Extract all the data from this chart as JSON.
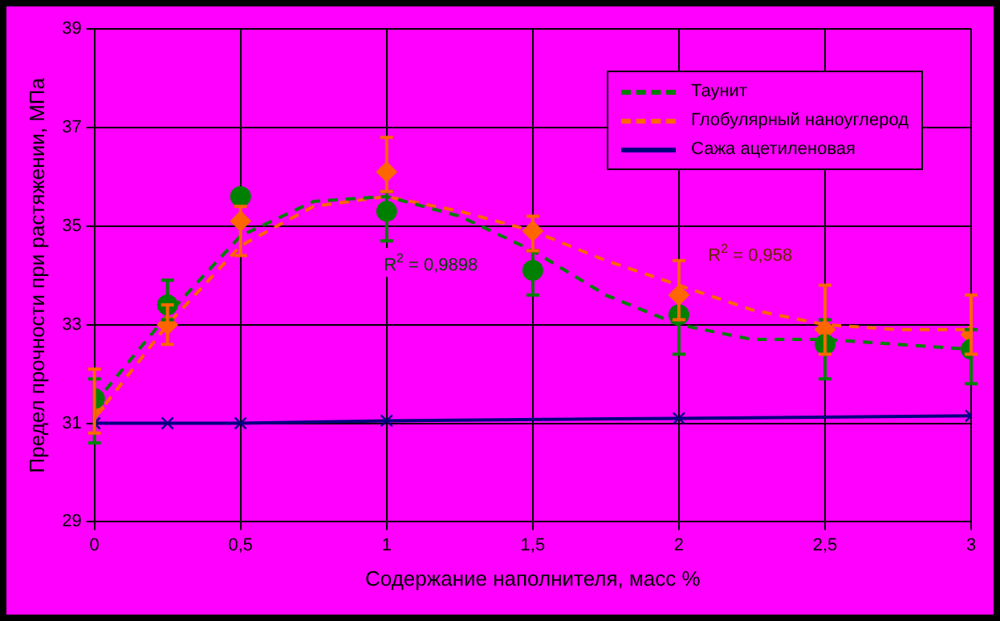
{
  "chart_data": {
    "type": "scatter",
    "xlabel": "Содержание наполнителя, масс %",
    "ylabel": "Предел прочности при растяжении, МПа",
    "xlim": [
      0,
      3
    ],
    "xticks": [
      0,
      {
        "value": 0.5,
        "label": "0,5"
      },
      1,
      {
        "value": 1.5,
        "label": "1,5"
      },
      2,
      {
        "value": 2.5,
        "label": "2,5"
      },
      3
    ],
    "ylim": [
      29,
      39
    ],
    "yticks": [
      29,
      31,
      33,
      35,
      37,
      39
    ],
    "grid": true,
    "legend": "top right",
    "series": [
      {
        "name": "Таунит",
        "marker": "circle",
        "color": "#008000",
        "x": [
          0,
          0.25,
          0.5,
          1,
          1.5,
          2,
          2.5,
          3
        ],
        "values": [
          31.5,
          33.4,
          35.6,
          35.3,
          34.1,
          33.2,
          32.6,
          32.5
        ],
        "errors": [
          [
            30.6,
            31.9
          ],
          [
            33.1,
            33.9
          ],
          null,
          [
            34.7,
            35.7
          ],
          [
            33.6,
            34.5
          ],
          [
            32.4,
            33.1
          ],
          [
            31.9,
            33.1
          ],
          [
            31.8,
            32.9
          ]
        ]
      },
      {
        "name": "Глобулярный наноуглерод",
        "marker": "diamond",
        "color": "#ff6600",
        "x": [
          0,
          0.25,
          0.5,
          1,
          1.5,
          2,
          2.5,
          3
        ],
        "values": [
          31.3,
          33.0,
          35.1,
          36.1,
          34.9,
          33.6,
          32.9,
          32.8
        ],
        "errors": [
          [
            30.8,
            32.1
          ],
          [
            32.6,
            33.4
          ],
          [
            34.4,
            35.4
          ],
          [
            35.7,
            36.8
          ],
          [
            34.5,
            35.2
          ],
          [
            33.1,
            34.3
          ],
          [
            32.4,
            33.8
          ],
          [
            32.4,
            33.6
          ]
        ]
      },
      {
        "name": "Сажа ацетиленовая",
        "type": "line",
        "marker": "cross",
        "line_style": "solid",
        "color": "#000080",
        "x": [
          0,
          0.25,
          0.5,
          1,
          2,
          3
        ],
        "values": [
          31.0,
          31.0,
          31.0,
          31.05,
          31.1,
          31.15
        ]
      },
      {
        "type": "line",
        "marker": "none",
        "line_style": "dashed",
        "color": "#008000",
        "x": [
          0,
          0.25,
          0.5,
          0.75,
          1,
          1.25,
          1.5,
          1.75,
          2,
          2.25,
          2.5,
          2.75,
          3
        ],
        "values": [
          31.4,
          33.2,
          34.8,
          35.5,
          35.6,
          35.2,
          34.5,
          33.6,
          33.0,
          32.7,
          32.7,
          32.6,
          32.5
        ]
      },
      {
        "type": "line",
        "marker": "none",
        "line_style": "dashed",
        "color": "#ff6600",
        "x": [
          0,
          0.25,
          0.5,
          0.75,
          1,
          1.25,
          1.5,
          1.75,
          2,
          2.25,
          2.5,
          2.75,
          3
        ],
        "values": [
          31.1,
          33.0,
          34.6,
          35.4,
          35.6,
          35.3,
          34.9,
          34.3,
          33.8,
          33.3,
          33.0,
          32.9,
          32.9
        ]
      }
    ],
    "annotations": [
      "R$^{2}$ = 0,9898",
      "R$^{2}$ = 0,958"
    ]
  }
}
